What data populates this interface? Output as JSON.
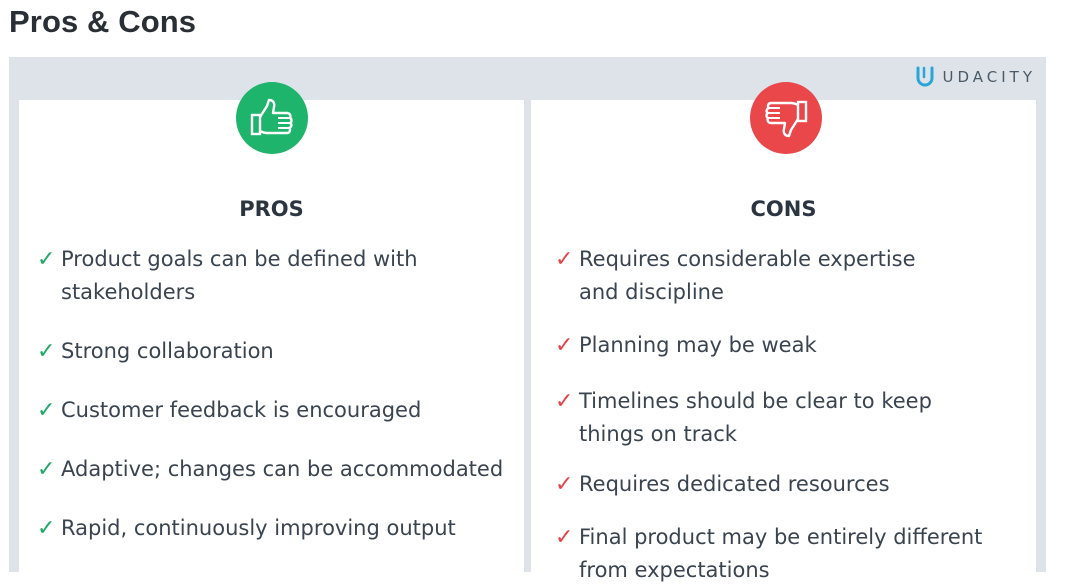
{
  "page": {
    "title": "Pros & Cons"
  },
  "brand": {
    "name": "UDACITY",
    "logo_icon": "udacity-u-icon"
  },
  "pros": {
    "heading": "PROS",
    "icon": "thumbs-up-icon",
    "color": "#1fb46b",
    "items": [
      "Product goals can be defined with\nstakeholders",
      "Strong collaboration",
      "Customer feedback is encouraged",
      "Adaptive; changes can be accommodated",
      "Rapid, continuously improving output"
    ]
  },
  "cons": {
    "heading": "CONS",
    "icon": "thumbs-down-icon",
    "color": "#e9474a",
    "items": [
      "Requires considerable expertise\nand discipline",
      "Planning may be weak",
      "Timelines should be clear to keep\nthings on track",
      "Requires dedicated resources",
      "Final product may be entirely different\nfrom expectations"
    ]
  },
  "check_glyph": "✓"
}
